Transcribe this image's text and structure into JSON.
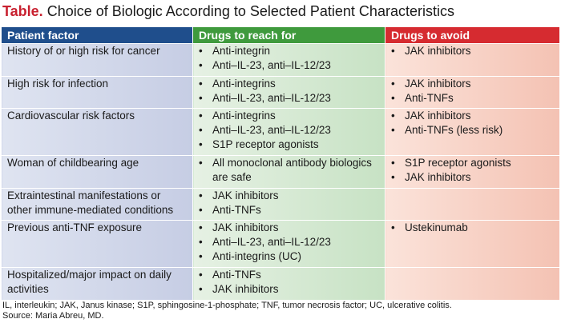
{
  "title": {
    "lead": "Table.",
    "text": "Choice of Biologic According to Selected Patient Characteristics"
  },
  "headers": {
    "factor": "Patient factor",
    "reach": "Drugs to reach for",
    "avoid": "Drugs to avoid"
  },
  "bullet": "•",
  "rows": [
    {
      "factor": "History of or high risk for cancer",
      "reach": [
        "Anti-integrin",
        "Anti–IL-23, anti–IL-12/23"
      ],
      "avoid": [
        "JAK inhibitors"
      ]
    },
    {
      "factor": "High risk for infection",
      "reach": [
        "Anti-integrins",
        "Anti–IL-23, anti–IL-12/23"
      ],
      "avoid": [
        "JAK inhibitors",
        "Anti-TNFs"
      ]
    },
    {
      "factor": "Cardiovascular risk factors",
      "reach": [
        "Anti-integrins",
        "Anti–IL-23, anti–IL-12/23",
        "S1P receptor agonists"
      ],
      "avoid": [
        "JAK inhibitors",
        "Anti-TNFs (less risk)"
      ]
    },
    {
      "factor": "Woman of childbearing age",
      "reach": [
        "All monoclonal antibody biologics are safe"
      ],
      "avoid": [
        "S1P receptor agonists",
        "JAK inhibitors"
      ]
    },
    {
      "factor": "Extraintestinal manifestations or other immune-mediated conditions",
      "reach": [
        "JAK inhibitors",
        "Anti-TNFs"
      ],
      "avoid": []
    },
    {
      "factor": "Previous anti-TNF exposure",
      "reach": [
        "JAK inhibitors",
        "Anti–IL-23, anti–IL-12/23",
        "Anti-integrins (UC)"
      ],
      "avoid": [
        "Ustekinumab"
      ]
    },
    {
      "factor": "Hospitalized/major impact on daily activities",
      "reach": [
        "Anti-TNFs",
        "JAK inhibitors"
      ],
      "avoid": []
    }
  ],
  "footnote": {
    "abbreviations": "IL, interleukin; JAK, Janus kinase; S1P, sphingosine-1-phosphate; TNF, tumor necrosis factor; UC, ulcerative colitis.",
    "source": "Source: Maria Abreu, MD."
  }
}
